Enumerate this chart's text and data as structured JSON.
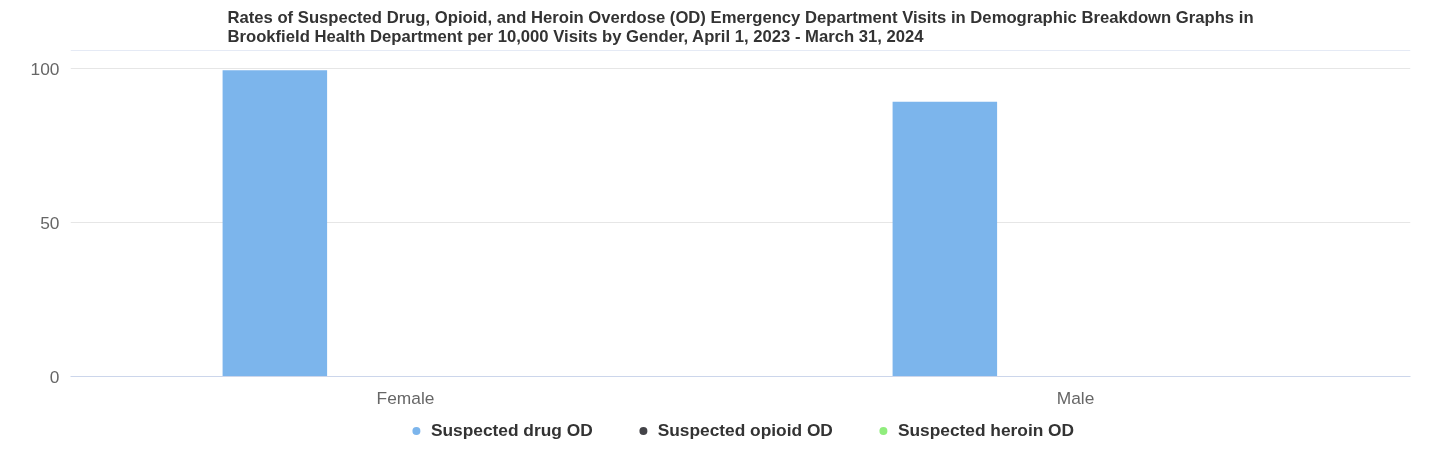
{
  "chart_data": {
    "type": "bar",
    "title": "Rates of Suspected Drug, Opioid, and Heroin Overdose (OD) Emergency Department Visits in Demographic Breakdown Graphs in\nBrookfield Health Department per 10,000 Visits by Gender, April 1, 2023 - March 31, 2024",
    "categories": [
      "Female",
      "Male"
    ],
    "series": [
      {
        "name": "Suspected drug OD",
        "color": "#7cb5ec",
        "values": [
          99.6,
          89.3
        ]
      },
      {
        "name": "Suspected opioid OD",
        "color": "#434348",
        "values": [
          0,
          0
        ]
      },
      {
        "name": "Suspected heroin OD",
        "color": "#90ed7d",
        "values": [
          0,
          0
        ]
      }
    ],
    "ylim": [
      0,
      106
    ],
    "yticks": [
      0,
      50,
      100
    ],
    "grid": "y",
    "legend": "bottom"
  }
}
